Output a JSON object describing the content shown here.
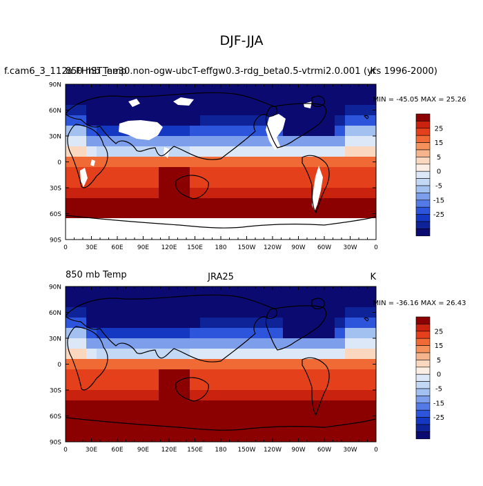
{
  "figure": {
    "title": "DJF-JJA"
  },
  "panels": [
    {
      "id": "model",
      "left_label": "850 mb Temp",
      "center_label": "",
      "right_label": "K",
      "case_label": "f.cam6_3_112a.FHIST_ne30.non-ogw-ubcT-effgw0.3-rdg_beta0.5-vtrmi2.0.001 (yrs 1996-2000)",
      "min": "-45.05",
      "max": "25.26",
      "stats": "MIN = -45.05 MAX =  25.26",
      "has_missing_data": true
    },
    {
      "id": "obs",
      "left_label": "850 mb Temp",
      "center_label": "JRA25",
      "right_label": "K",
      "case_label": "",
      "min": "-36.16",
      "max": "26.43",
      "stats": "MIN = -36.16 MAX =  26.43",
      "has_missing_data": false
    }
  ],
  "axes": {
    "lat_labels": [
      "90N",
      "60N",
      "30N",
      "0",
      "30S",
      "60S",
      "90S"
    ],
    "lon_labels": [
      "0",
      "30E",
      "60E",
      "90E",
      "120E",
      "150E",
      "180",
      "150W",
      "120W",
      "90W",
      "60W",
      "30W",
      "0"
    ]
  },
  "colorbar": {
    "labels": [
      "25",
      "15",
      "5",
      "0",
      "-5",
      "-15",
      "-25"
    ],
    "colors": [
      "#8B0000",
      "#C9220E",
      "#E3401B",
      "#F06A35",
      "#F5915B",
      "#F6B48D",
      "#FAD8C0",
      "#FBEEE4",
      "#DCE8F8",
      "#C3D8F5",
      "#A2C0F0",
      "#7C9EEB",
      "#537AE6",
      "#2C55DC",
      "#1538C2",
      "#0F2399",
      "#0A0A70"
    ]
  }
}
